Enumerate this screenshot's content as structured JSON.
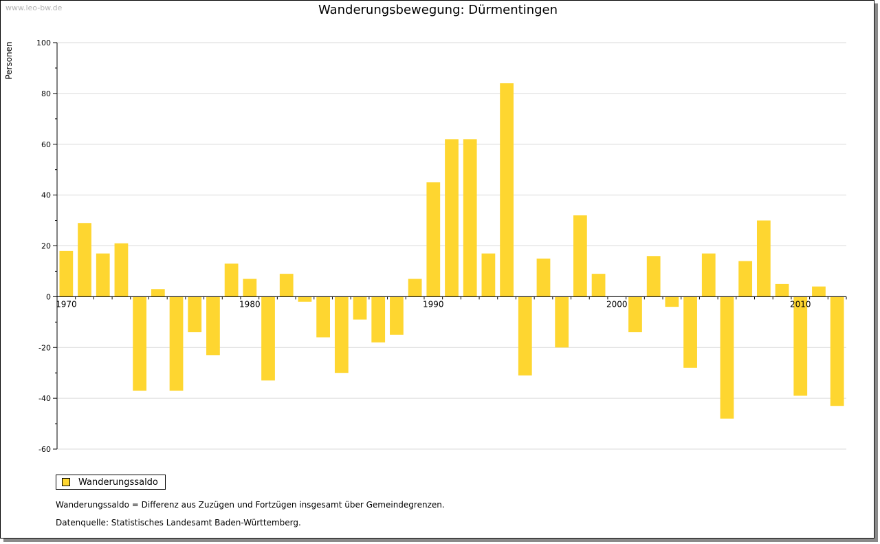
{
  "watermark": "www.leo-bw.de",
  "colors": {
    "bar": "#fed630",
    "grid": "#d9d9d9",
    "axis": "#000000"
  },
  "chart_data": {
    "type": "bar",
    "title": "Wanderungsbewegung: Dürmentingen",
    "ylabel": "Personen",
    "xlabel": "",
    "ylim": [
      -60,
      100
    ],
    "yticks": [
      -60,
      -40,
      -20,
      0,
      20,
      40,
      60,
      80,
      100
    ],
    "x_tick_labels": [
      "1970",
      "1980",
      "1990",
      "2000",
      "2010"
    ],
    "grid": true,
    "legend_position": "bottom-left",
    "categories": [
      1970,
      1971,
      1972,
      1973,
      1974,
      1975,
      1976,
      1977,
      1978,
      1979,
      1980,
      1981,
      1982,
      1983,
      1984,
      1985,
      1986,
      1987,
      1988,
      1989,
      1990,
      1991,
      1992,
      1993,
      1994,
      1995,
      1996,
      1997,
      1998,
      1999,
      2000,
      2001,
      2002,
      2003,
      2004,
      2005,
      2006,
      2007,
      2008,
      2009,
      2010,
      2011,
      2012
    ],
    "series": [
      {
        "name": "Wanderungssaldo",
        "values": [
          18,
          29,
          17,
          21,
          -37,
          3,
          -37,
          -14,
          -23,
          13,
          7,
          -33,
          9,
          -2,
          -16,
          -30,
          -9,
          -18,
          -15,
          7,
          45,
          62,
          62,
          17,
          84,
          -31,
          15,
          -20,
          32,
          9,
          0,
          -14,
          16,
          -4,
          -28,
          17,
          -48,
          14,
          30,
          5,
          -39,
          4,
          -43
        ]
      }
    ]
  },
  "notes": {
    "definition": "Wanderungssaldo = Differenz aus Zuzügen und Fortzügen insgesamt über Gemeindegrenzen.",
    "source": "Datenquelle: Statistisches Landesamt Baden-Württemberg."
  }
}
